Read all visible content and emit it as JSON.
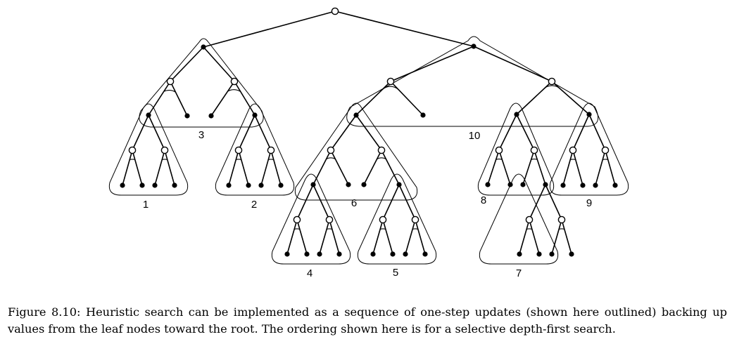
{
  "figure": {
    "caption": "Figure 8.10: Heuristic search can be implemented as a sequence of one-step updates (shown here outlined) backing up values from the leaf nodes toward the root. The ordering shown here is for a selective depth-first search."
  },
  "diagram": {
    "update_labels": [
      "1",
      "2",
      "3",
      "4",
      "5",
      "6",
      "7",
      "8",
      "9",
      "10"
    ]
  }
}
